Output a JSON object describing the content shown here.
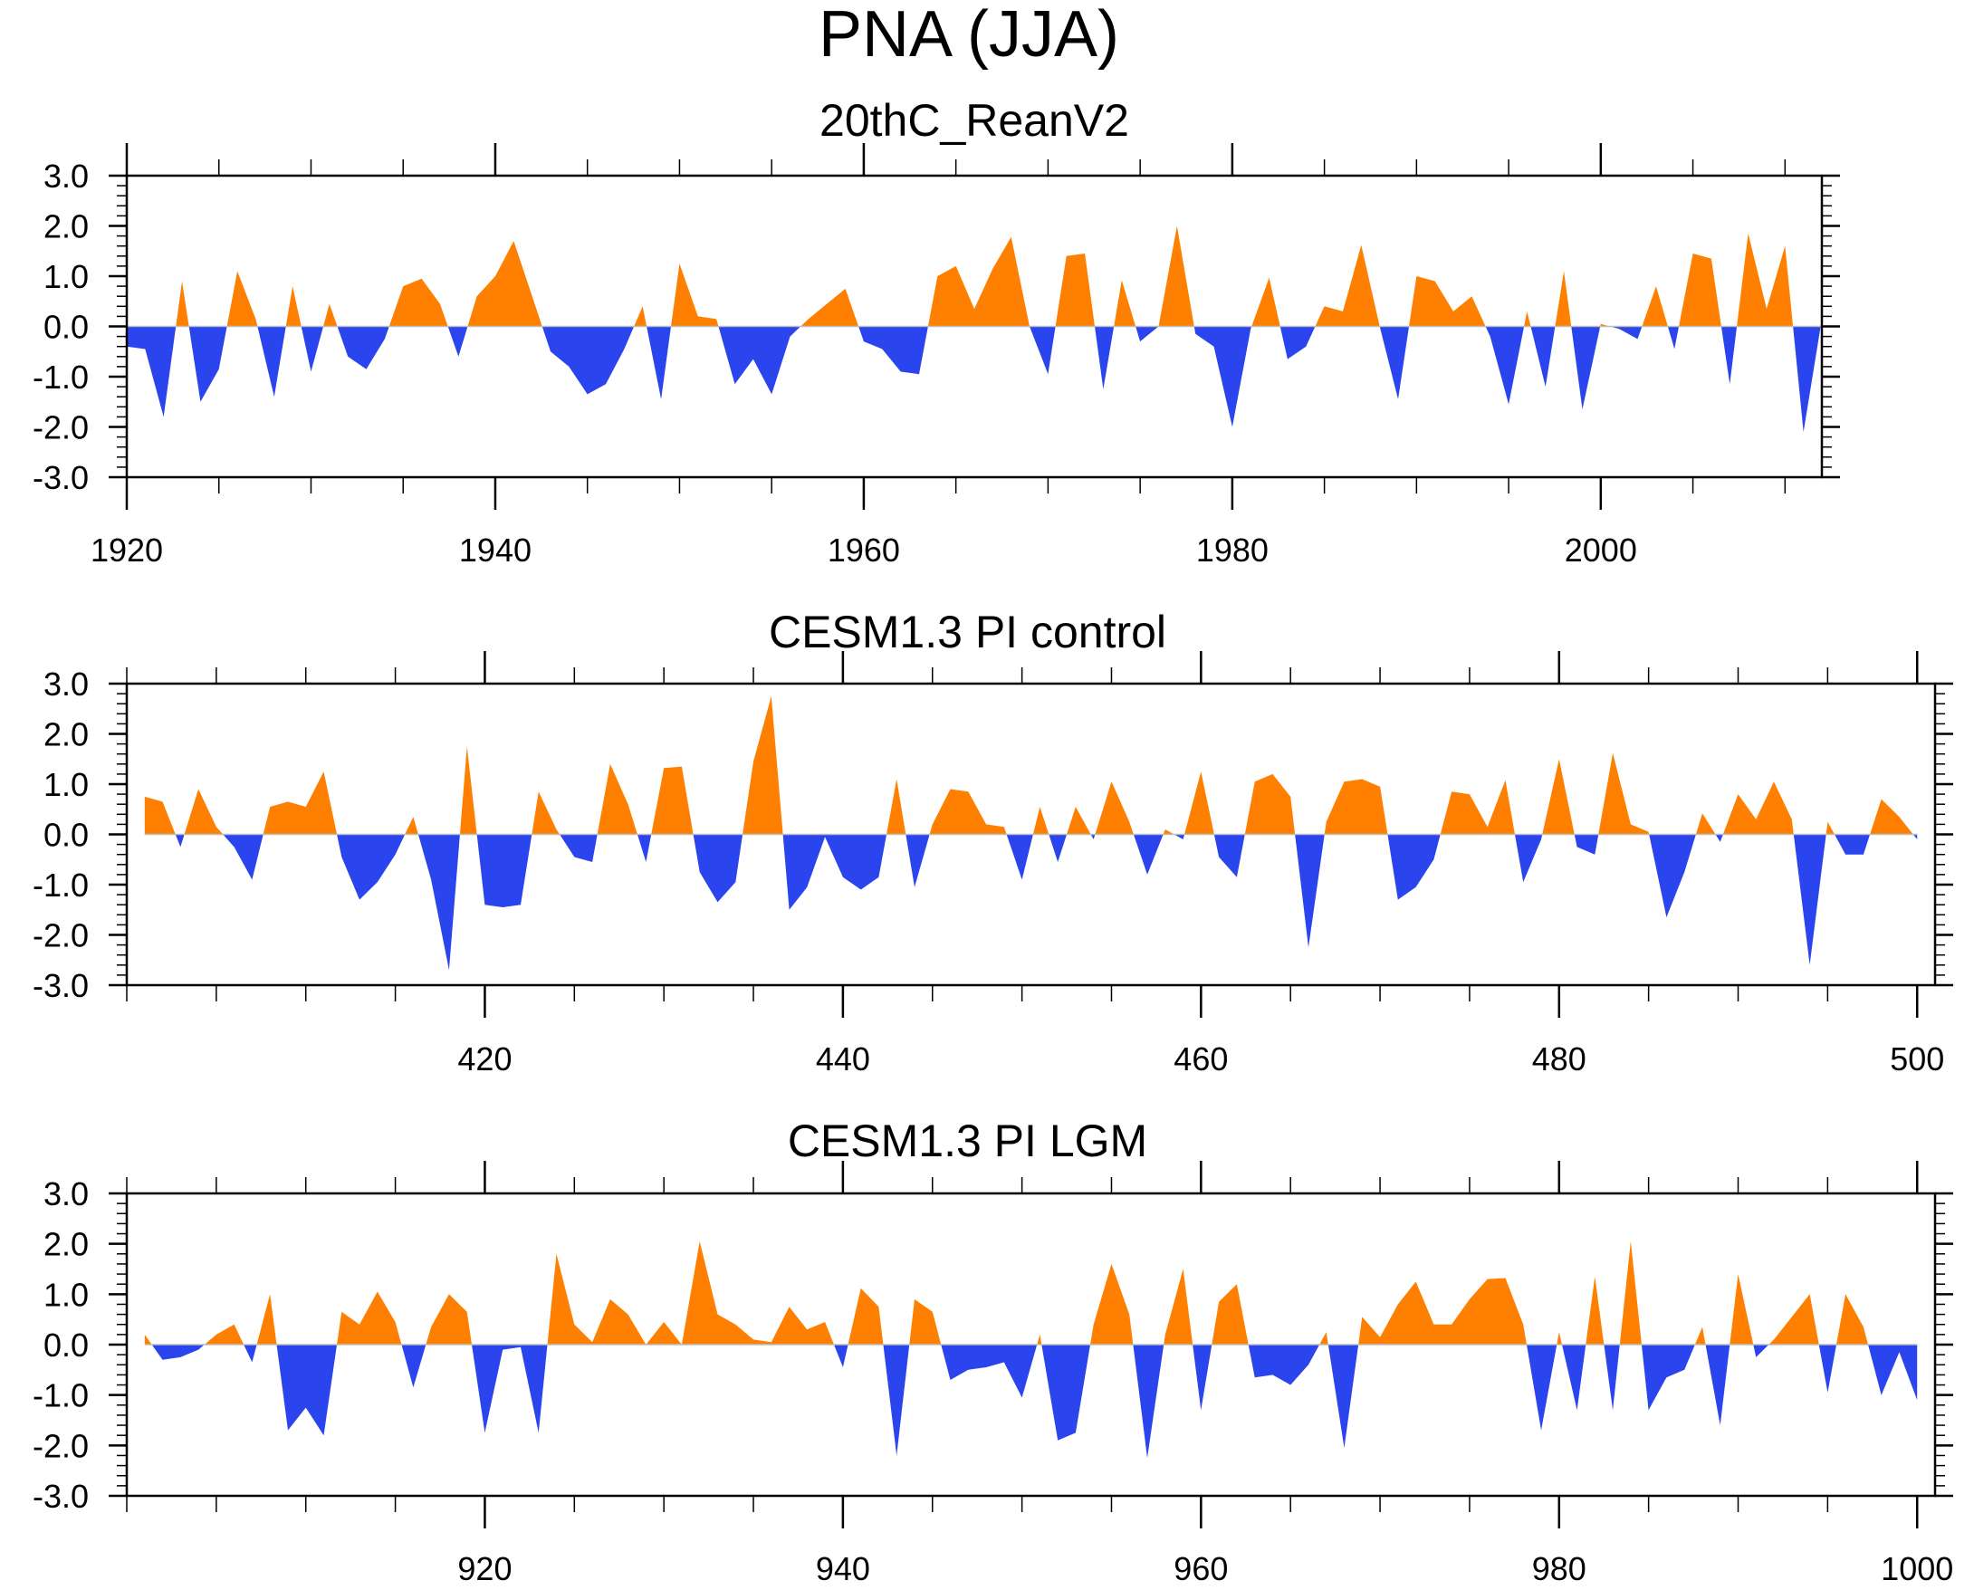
{
  "title": "PNA (JJA)",
  "colors": {
    "positive": "#ff8000",
    "negative": "#2a44ee",
    "axis": "#000000"
  },
  "chart_data": [
    {
      "type": "area",
      "title": "20thC_ReanV2",
      "ylim": [
        -3,
        3
      ],
      "yticks": [
        "3.0",
        "2.0",
        "1.0",
        "0.0",
        "-1.0",
        "-2.0",
        "-3.0"
      ],
      "xlim": [
        1920,
        2012
      ],
      "xticks": [
        1920,
        1940,
        1960,
        1980,
        2000
      ],
      "xtick_labels": [
        "1920",
        "1940",
        "1960",
        "1980",
        "2000"
      ],
      "x_start": 1920,
      "values": [
        -0.4,
        -0.45,
        -1.8,
        0.9,
        -1.5,
        -0.85,
        1.1,
        0.15,
        -1.4,
        0.8,
        -0.9,
        0.45,
        -0.6,
        -0.85,
        -0.25,
        0.8,
        0.95,
        0.45,
        -0.6,
        0.6,
        1.0,
        1.7,
        0.6,
        -0.5,
        -0.8,
        -1.35,
        -1.15,
        -0.45,
        0.4,
        -1.45,
        1.25,
        0.2,
        0.15,
        -1.15,
        -0.65,
        -1.35,
        -0.2,
        0.15,
        0.45,
        0.75,
        -0.3,
        -0.45,
        -0.9,
        -0.95,
        1.0,
        1.2,
        0.35,
        1.15,
        1.78,
        0.0,
        -0.95,
        1.4,
        1.45,
        -1.25,
        0.92,
        -0.3,
        0.0,
        2.0,
        -0.15,
        -0.4,
        -2.0,
        -0.05,
        0.97,
        -0.65,
        -0.4,
        0.4,
        0.3,
        1.62,
        0.0,
        -1.45,
        1.0,
        0.9,
        0.3,
        0.6,
        -0.2,
        -1.55,
        0.3,
        -1.2,
        1.1,
        -1.65,
        0.05,
        -0.05,
        -0.25,
        0.8,
        -0.45,
        1.45,
        1.35,
        -1.15,
        1.85,
        0.35,
        1.6,
        -2.1,
        0.15
      ]
    },
    {
      "type": "area",
      "title": "CESM1.3 PI control",
      "ylim": [
        -3,
        3
      ],
      "yticks": [
        "3.0",
        "2.0",
        "1.0",
        "0.0",
        "-1.0",
        "-2.0",
        "-3.0"
      ],
      "xlim": [
        400,
        501
      ],
      "xticks": [
        420,
        440,
        460,
        480,
        500
      ],
      "xtick_labels": [
        "420",
        "440",
        "460",
        "480",
        "500"
      ],
      "x_start": 401,
      "values": [
        0.75,
        0.65,
        -0.25,
        0.9,
        0.15,
        -0.25,
        -0.9,
        0.55,
        0.65,
        0.55,
        1.25,
        -0.45,
        -1.3,
        -0.95,
        -0.4,
        0.35,
        -0.9,
        -2.7,
        1.75,
        -1.4,
        -1.45,
        -1.4,
        0.85,
        0.1,
        -0.45,
        -0.55,
        1.4,
        0.6,
        -0.55,
        1.32,
        1.35,
        -0.75,
        -1.35,
        -0.95,
        1.45,
        2.75,
        -1.5,
        -1.05,
        -0.05,
        -0.85,
        -1.1,
        -0.85,
        1.1,
        -1.05,
        0.2,
        0.9,
        0.85,
        0.2,
        0.15,
        -0.9,
        0.55,
        -0.55,
        0.55,
        -0.1,
        1.05,
        0.25,
        -0.8,
        0.1,
        -0.1,
        1.25,
        -0.45,
        -0.85,
        1.05,
        1.2,
        0.75,
        -2.25,
        0.25,
        1.05,
        1.1,
        0.95,
        -1.3,
        -1.05,
        -0.5,
        0.85,
        0.8,
        0.15,
        1.08,
        -0.95,
        -0.1,
        1.5,
        -0.25,
        -0.4,
        1.62,
        0.2,
        0.05,
        -1.65,
        -0.75,
        0.42,
        -0.15,
        0.8,
        0.3,
        1.05,
        0.3,
        -2.6,
        0.25,
        -0.4,
        -0.4,
        0.7,
        0.35,
        -0.1
      ]
    },
    {
      "type": "area",
      "title": "CESM1.3 PI LGM",
      "ylim": [
        -3,
        3
      ],
      "yticks": [
        "3.0",
        "2.0",
        "1.0",
        "0.0",
        "-1.0",
        "-2.0",
        "-3.0"
      ],
      "xlim": [
        900,
        1001
      ],
      "xticks": [
        920,
        940,
        960,
        980,
        1000
      ],
      "xtick_labels": [
        "920",
        "940",
        "960",
        "980",
        "1000"
      ],
      "x_start": 901,
      "values": [
        0.2,
        -0.3,
        -0.25,
        -0.1,
        0.2,
        0.4,
        -0.35,
        1.0,
        -1.7,
        -1.25,
        -1.8,
        0.65,
        0.4,
        1.05,
        0.45,
        -0.85,
        0.35,
        1.0,
        0.65,
        -1.75,
        -0.1,
        -0.05,
        -1.75,
        1.8,
        0.4,
        0.05,
        0.9,
        0.6,
        0.0,
        0.45,
        0.0,
        2.05,
        0.6,
        0.4,
        0.1,
        0.05,
        0.75,
        0.3,
        0.45,
        -0.45,
        1.12,
        0.75,
        -2.2,
        0.9,
        0.65,
        -0.7,
        -0.5,
        -0.45,
        -0.35,
        -1.05,
        0.2,
        -1.9,
        -1.75,
        0.4,
        1.6,
        0.6,
        -2.25,
        0.2,
        1.5,
        -1.3,
        0.85,
        1.2,
        -0.65,
        -0.6,
        -0.8,
        -0.4,
        0.25,
        -2.05,
        0.55,
        0.15,
        0.8,
        1.25,
        0.4,
        0.4,
        0.9,
        1.3,
        1.32,
        0.4,
        -1.7,
        0.25,
        -1.3,
        1.35,
        -1.3,
        2.05,
        -1.3,
        -0.65,
        -0.5,
        0.35,
        -1.6,
        1.4,
        -0.25,
        0.1,
        0.55,
        1.0,
        -0.95,
        1.0,
        0.35,
        -1.0,
        -0.15,
        -1.1
      ]
    }
  ]
}
